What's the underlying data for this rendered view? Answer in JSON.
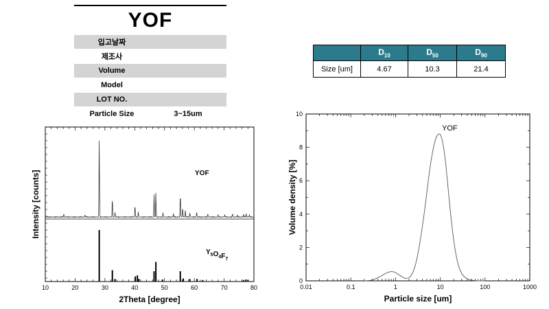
{
  "title": "YOF",
  "info_rows": [
    {
      "label": "입고날짜",
      "value": ""
    },
    {
      "label": "제조사",
      "value": ""
    },
    {
      "label": "Volume",
      "value": ""
    },
    {
      "label": "Model",
      "value": ""
    },
    {
      "label": "LOT NO.",
      "value": ""
    },
    {
      "label": "Particle Size",
      "value": "3~15um"
    }
  ],
  "d_table": {
    "headers": [
      {
        "main": "",
        "sub": ""
      },
      {
        "main": "D",
        "sub": "10"
      },
      {
        "main": "D",
        "sub": "50"
      },
      {
        "main": "D",
        "sub": "90"
      }
    ],
    "row": [
      "Size [um]",
      "4.67",
      "10.3",
      "21.4"
    ],
    "header_color": "#2b7b8c"
  },
  "chart_data": [
    {
      "type": "line",
      "xlabel": "2Theta [degree]",
      "ylabel": "Intensity [counts]",
      "xlim": [
        10,
        80
      ],
      "x_ticks": [
        10,
        20,
        30,
        40,
        50,
        60,
        70,
        80
      ],
      "series": [
        {
          "name": "YOF",
          "peaks": [
            [
              16.2,
              0.04
            ],
            [
              23.4,
              0.03
            ],
            [
              28.1,
              1.0
            ],
            [
              32.5,
              0.24
            ],
            [
              33.4,
              0.06
            ],
            [
              40.1,
              0.15
            ],
            [
              41.2,
              0.06
            ],
            [
              46.5,
              0.28
            ],
            [
              47.1,
              0.32
            ],
            [
              49.5,
              0.05
            ],
            [
              53.0,
              0.05
            ],
            [
              55.3,
              0.3
            ],
            [
              56.1,
              0.12
            ],
            [
              57.0,
              0.09
            ],
            [
              58.5,
              0.05
            ],
            [
              60.8,
              0.06
            ],
            [
              64.5,
              0.04
            ],
            [
              68.0,
              0.03
            ],
            [
              70.2,
              0.03
            ],
            [
              72.8,
              0.04
            ],
            [
              74.5,
              0.03
            ],
            [
              76.5,
              0.04
            ],
            [
              77.4,
              0.05
            ],
            [
              78.5,
              0.03
            ]
          ]
        },
        {
          "name": "Y5O4F7",
          "sticks": [
            [
              28.1,
              1.0
            ],
            [
              32.5,
              0.22
            ],
            [
              33.4,
              0.05
            ],
            [
              40.2,
              0.1
            ],
            [
              40.9,
              0.12
            ],
            [
              41.4,
              0.05
            ],
            [
              46.5,
              0.2
            ],
            [
              47.1,
              0.38
            ],
            [
              49.3,
              0.04
            ],
            [
              55.3,
              0.2
            ],
            [
              56.3,
              0.06
            ],
            [
              58.5,
              0.05
            ],
            [
              60.9,
              0.05
            ],
            [
              62.8,
              0.03
            ],
            [
              76.5,
              0.03
            ],
            [
              77.3,
              0.04
            ],
            [
              78.0,
              0.03
            ]
          ]
        }
      ],
      "label_yof": "YOF",
      "label_y5o4f7": {
        "a": "Y",
        "a_sub": "5",
        "b": "O",
        "b_sub": "4",
        "c": "F",
        "c_sub": "7"
      }
    },
    {
      "type": "line",
      "xlabel": "Particle size [um]",
      "ylabel": "Volume density [%]",
      "xscale": "log",
      "xlim": [
        0.01,
        1000
      ],
      "ylim": [
        0,
        10
      ],
      "x_tick_labels": [
        "0.01",
        "0.1",
        "1",
        "10",
        "100",
        "1000"
      ],
      "y_tick_labels": [
        "0",
        "2",
        "4",
        "6",
        "8",
        "10"
      ],
      "series": [
        {
          "name": "YOF",
          "x": [
            0.2,
            0.3,
            0.45,
            0.6,
            0.8,
            1.0,
            1.3,
            1.7,
            2.2,
            2.8,
            3.5,
            4.5,
            5.5,
            6.5,
            7.5,
            8.5,
            9.5,
            10.3,
            11.5,
            13,
            15,
            18,
            21.4,
            25,
            30,
            37,
            45,
            55,
            70,
            100
          ],
          "y": [
            0.0,
            0.05,
            0.25,
            0.45,
            0.55,
            0.5,
            0.3,
            0.15,
            0.3,
            1.0,
            2.3,
            4.3,
            6.2,
            7.5,
            8.3,
            8.7,
            8.8,
            8.7,
            8.2,
            7.2,
            5.5,
            3.4,
            1.9,
            1.0,
            0.45,
            0.18,
            0.07,
            0.02,
            0.0,
            0.0
          ]
        }
      ],
      "label": "YOF"
    }
  ]
}
